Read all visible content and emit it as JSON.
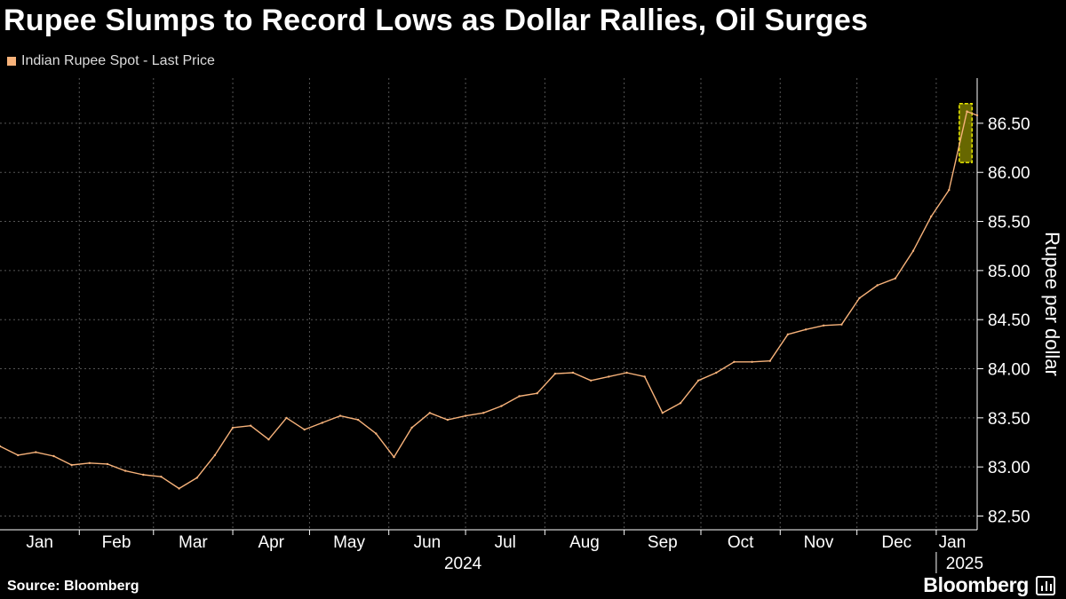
{
  "title": "Rupee Slumps to Record Lows as Dollar Rallies, Oil Surges",
  "source": "Source: Bloomberg",
  "brand": "Bloomberg",
  "colors": {
    "background": "#000000",
    "series": "#f7b27a",
    "grid": "#555555",
    "highlight_fill": "#8a8a00",
    "highlight_border": "#e8e800"
  },
  "chart_data": {
    "type": "line",
    "title": "Rupee Slumps to Record Lows as Dollar Rallies, Oil Surges",
    "ylabel": "Rupee per dollar",
    "xlabel": "",
    "ylim": [
      82.36,
      86.96
    ],
    "yticks": [
      82.5,
      83.0,
      83.5,
      84.0,
      84.5,
      85.0,
      85.5,
      86.0,
      86.5
    ],
    "ytick_labels": [
      "82.50",
      "83.00",
      "83.50",
      "84.00",
      "84.50",
      "85.00",
      "85.50",
      "86.00",
      "86.50"
    ],
    "x_range": [
      "2024-01-01",
      "2025-01-17"
    ],
    "x_month_labels": [
      "Jan",
      "Feb",
      "Mar",
      "Apr",
      "May",
      "Jun",
      "Jul",
      "Aug",
      "Sep",
      "Oct",
      "Nov",
      "Dec",
      "Jan"
    ],
    "x_year_labels": [
      "2024",
      "2025"
    ],
    "grid": true,
    "legend": "top-left",
    "highlight": {
      "x_from": "2025-01-10",
      "x_to": "2025-01-15",
      "y_from": 86.1,
      "y_to": 86.7
    },
    "series": [
      {
        "name": "Indian Rupee Spot - Last Price",
        "points": [
          [
            "2024-01-01",
            83.21
          ],
          [
            "2024-01-08",
            83.12
          ],
          [
            "2024-01-15",
            83.15
          ],
          [
            "2024-01-22",
            83.11
          ],
          [
            "2024-01-29",
            83.02
          ],
          [
            "2024-02-05",
            83.04
          ],
          [
            "2024-02-12",
            83.03
          ],
          [
            "2024-02-19",
            82.96
          ],
          [
            "2024-02-26",
            82.92
          ],
          [
            "2024-03-04",
            82.9
          ],
          [
            "2024-03-11",
            82.78
          ],
          [
            "2024-03-18",
            82.89
          ],
          [
            "2024-03-25",
            83.12
          ],
          [
            "2024-04-01",
            83.4
          ],
          [
            "2024-04-08",
            83.42
          ],
          [
            "2024-04-15",
            83.28
          ],
          [
            "2024-04-22",
            83.5
          ],
          [
            "2024-04-29",
            83.38
          ],
          [
            "2024-05-06",
            83.45
          ],
          [
            "2024-05-13",
            83.52
          ],
          [
            "2024-05-20",
            83.48
          ],
          [
            "2024-05-27",
            83.34
          ],
          [
            "2024-06-03",
            83.1
          ],
          [
            "2024-06-10",
            83.4
          ],
          [
            "2024-06-17",
            83.55
          ],
          [
            "2024-06-24",
            83.48
          ],
          [
            "2024-07-01",
            83.52
          ],
          [
            "2024-07-08",
            83.55
          ],
          [
            "2024-07-15",
            83.62
          ],
          [
            "2024-07-22",
            83.72
          ],
          [
            "2024-07-29",
            83.75
          ],
          [
            "2024-08-05",
            83.95
          ],
          [
            "2024-08-12",
            83.96
          ],
          [
            "2024-08-19",
            83.88
          ],
          [
            "2024-08-26",
            83.92
          ],
          [
            "2024-09-02",
            83.96
          ],
          [
            "2024-09-09",
            83.92
          ],
          [
            "2024-09-16",
            83.55
          ],
          [
            "2024-09-23",
            83.65
          ],
          [
            "2024-09-30",
            83.88
          ],
          [
            "2024-10-07",
            83.96
          ],
          [
            "2024-10-14",
            84.07
          ],
          [
            "2024-10-21",
            84.07
          ],
          [
            "2024-10-28",
            84.08
          ],
          [
            "2024-11-04",
            84.35
          ],
          [
            "2024-11-11",
            84.4
          ],
          [
            "2024-11-18",
            84.44
          ],
          [
            "2024-11-25",
            84.45
          ],
          [
            "2024-12-02",
            84.72
          ],
          [
            "2024-12-09",
            84.85
          ],
          [
            "2024-12-16",
            84.92
          ],
          [
            "2024-12-23",
            85.2
          ],
          [
            "2024-12-30",
            85.55
          ],
          [
            "2025-01-06",
            85.82
          ],
          [
            "2025-01-13",
            86.62
          ],
          [
            "2025-01-17",
            86.58
          ]
        ]
      }
    ]
  }
}
